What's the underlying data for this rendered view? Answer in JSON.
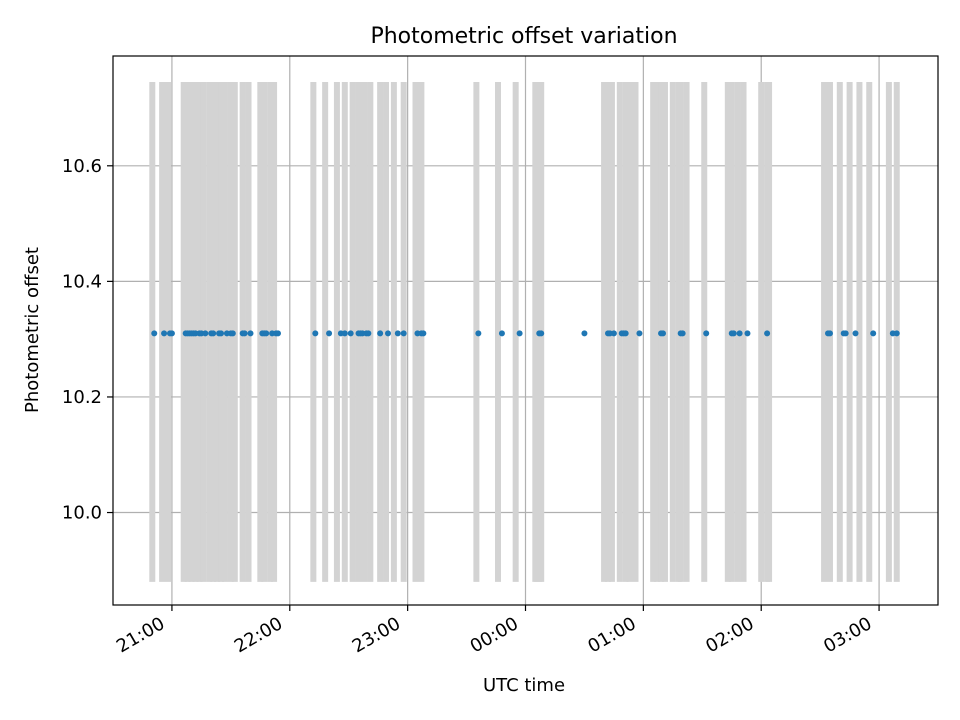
{
  "chart_data": {
    "type": "scatter",
    "title": "Photometric offset variation",
    "xlabel": "UTC time",
    "ylabel": "Photometric offset",
    "xlim": [
      "20:30",
      "03:30"
    ],
    "ylim": [
      9.84,
      10.79
    ],
    "grid": true,
    "x_ticks": [
      "21:00",
      "22:00",
      "23:00",
      "00:00",
      "01:00",
      "02:00",
      "03:00"
    ],
    "y_ticks": [
      10.0,
      10.2,
      10.4,
      10.6
    ],
    "band_range": [
      9.88,
      10.745
    ],
    "colors": {
      "points": "#1f77b4",
      "bands": "#d3d3d3",
      "grid": "#b0b0b0"
    },
    "points": {
      "y": 10.31,
      "x": [
        "20:51",
        "20:56",
        "20:59",
        "21:00",
        "21:07",
        "21:08",
        "21:09",
        "21:10",
        "21:11",
        "21:12",
        "21:14",
        "21:15",
        "21:17",
        "21:20",
        "21:21",
        "21:24",
        "21:25",
        "21:28",
        "21:30",
        "21:31",
        "21:36",
        "21:37",
        "21:40",
        "21:46",
        "21:47",
        "21:48",
        "21:51",
        "21:53",
        "21:54",
        "22:13",
        "22:20",
        "22:26",
        "22:28",
        "22:31",
        "22:35",
        "22:36",
        "22:37",
        "22:39",
        "22:40",
        "22:46",
        "22:50",
        "22:55",
        "22:58",
        "23:05",
        "23:07",
        "23:08",
        "23:36",
        "23:48",
        "23:57",
        "00:07",
        "00:08",
        "00:30",
        "00:42",
        "00:43",
        "00:45",
        "00:49",
        "00:50",
        "00:51",
        "00:58",
        "01:09",
        "01:10",
        "01:19",
        "01:20",
        "01:32",
        "01:45",
        "01:46",
        "01:49",
        "01:53",
        "02:03",
        "02:34",
        "02:35",
        "02:42",
        "02:43",
        "02:48",
        "02:57",
        "03:07",
        "03:09"
      ]
    },
    "bands": [
      "20:50",
      "20:55",
      "20:58",
      "21:06",
      "21:08",
      "21:10",
      "21:12",
      "21:14",
      "21:16",
      "21:19",
      "21:21",
      "21:23",
      "21:25",
      "21:27",
      "21:30",
      "21:32",
      "21:36",
      "21:39",
      "21:45",
      "21:47",
      "21:50",
      "21:52",
      "22:12",
      "22:18",
      "22:24",
      "22:28",
      "22:32",
      "22:35",
      "22:38",
      "22:41",
      "22:46",
      "22:49",
      "22:53",
      "22:58",
      "23:04",
      "23:07",
      "23:35",
      "23:46",
      "23:55",
      "00:05",
      "00:06",
      "00:07",
      "00:08",
      "00:40",
      "00:42",
      "00:44",
      "00:48",
      "00:51",
      "00:53",
      "00:56",
      "01:05",
      "01:07",
      "01:09",
      "01:11",
      "01:15",
      "01:18",
      "01:19",
      "01:22",
      "01:31",
      "01:43",
      "01:45",
      "01:48",
      "01:51",
      "02:00",
      "02:03",
      "02:04",
      "02:32",
      "02:35",
      "02:40",
      "02:45",
      "02:50",
      "02:55",
      "03:05",
      "03:09"
    ]
  }
}
